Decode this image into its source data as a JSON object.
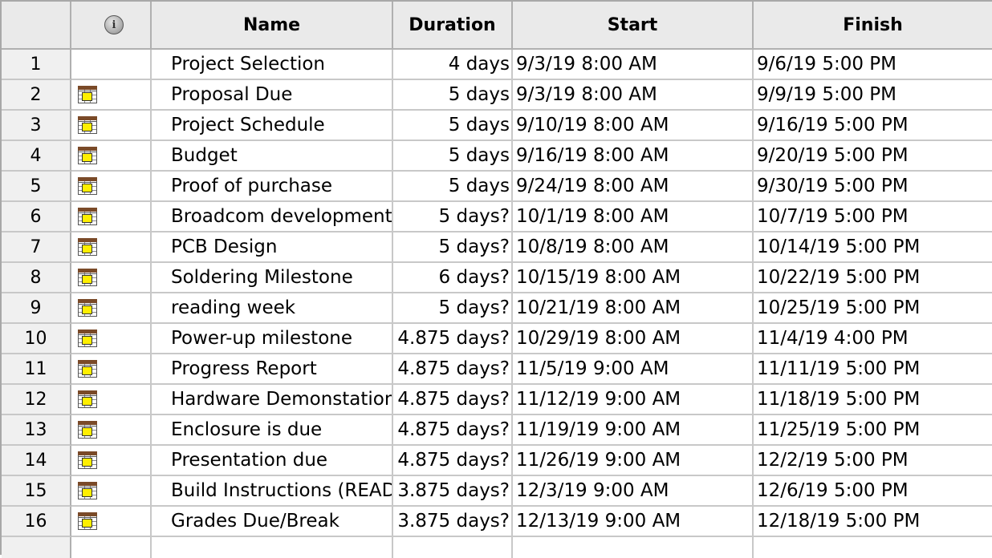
{
  "columns": {
    "id": "",
    "indicator": "info-icon",
    "name": "Name",
    "duration": "Duration",
    "start": "Start",
    "finish": "Finish"
  },
  "tasks": [
    {
      "id": "1",
      "indicator": "",
      "name": "Project Selection",
      "duration": "4 days",
      "start": "9/3/19 8:00 AM",
      "finish": "9/6/19 5:00 PM"
    },
    {
      "id": "2",
      "indicator": "calendar-task-icon",
      "name": "Proposal Due",
      "duration": "5 days",
      "start": "9/3/19 8:00 AM",
      "finish": "9/9/19 5:00 PM"
    },
    {
      "id": "3",
      "indicator": "calendar-task-icon",
      "name": "Project Schedule",
      "duration": "5 days",
      "start": "9/10/19 8:00 AM",
      "finish": "9/16/19 5:00 PM"
    },
    {
      "id": "4",
      "indicator": "calendar-task-icon",
      "name": "Budget",
      "duration": "5 days",
      "start": "9/16/19 8:00 AM",
      "finish": "9/20/19 5:00 PM"
    },
    {
      "id": "5",
      "indicator": "calendar-task-icon",
      "name": "Proof of purchase",
      "duration": "5 days",
      "start": "9/24/19 8:00 AM",
      "finish": "9/30/19 5:00 PM"
    },
    {
      "id": "6",
      "indicator": "calendar-task-icon",
      "name": "Broadcom development",
      "duration": "5 days?",
      "start": "10/1/19 8:00 AM",
      "finish": "10/7/19 5:00 PM"
    },
    {
      "id": "7",
      "indicator": "calendar-task-icon",
      "name": "PCB Design",
      "duration": "5 days?",
      "start": "10/8/19 8:00 AM",
      "finish": "10/14/19 5:00 PM"
    },
    {
      "id": "8",
      "indicator": "calendar-task-icon",
      "name": "Soldering Milestone",
      "duration": "6 days?",
      "start": "10/15/19 8:00 AM",
      "finish": "10/22/19 5:00 PM"
    },
    {
      "id": "9",
      "indicator": "calendar-task-icon",
      "name": "reading week",
      "duration": "5 days?",
      "start": "10/21/19 8:00 AM",
      "finish": "10/25/19 5:00 PM"
    },
    {
      "id": "10",
      "indicator": "calendar-task-icon",
      "name": "Power-up milestone",
      "duration": "4.875 days?",
      "start": "10/29/19 8:00 AM",
      "finish": "11/4/19 4:00 PM"
    },
    {
      "id": "11",
      "indicator": "calendar-task-icon",
      "name": "Progress Report",
      "duration": "4.875 days?",
      "start": "11/5/19 9:00 AM",
      "finish": "11/11/19 5:00 PM"
    },
    {
      "id": "12",
      "indicator": "calendar-task-icon",
      "name": "Hardware Demonstation",
      "duration": "4.875 days?",
      "start": "11/12/19 9:00 AM",
      "finish": "11/18/19 5:00 PM"
    },
    {
      "id": "13",
      "indicator": "calendar-task-icon",
      "name": "Enclosure is due",
      "duration": "4.875 days?",
      "start": "11/19/19 9:00 AM",
      "finish": "11/25/19 5:00 PM"
    },
    {
      "id": "14",
      "indicator": "calendar-task-icon",
      "name": "Presentation due",
      "duration": "4.875 days?",
      "start": "11/26/19 9:00 AM",
      "finish": "12/2/19 5:00 PM"
    },
    {
      "id": "15",
      "indicator": "calendar-task-icon",
      "name": "Build Instructions (README)",
      "duration": "3.875 days?",
      "start": "12/3/19 9:00 AM",
      "finish": "12/6/19 5:00 PM"
    },
    {
      "id": "16",
      "indicator": "calendar-task-icon",
      "name": "Grades Due/Break",
      "duration": "3.875 days?",
      "start": "12/13/19 9:00 AM",
      "finish": "12/18/19 5:00 PM"
    }
  ]
}
